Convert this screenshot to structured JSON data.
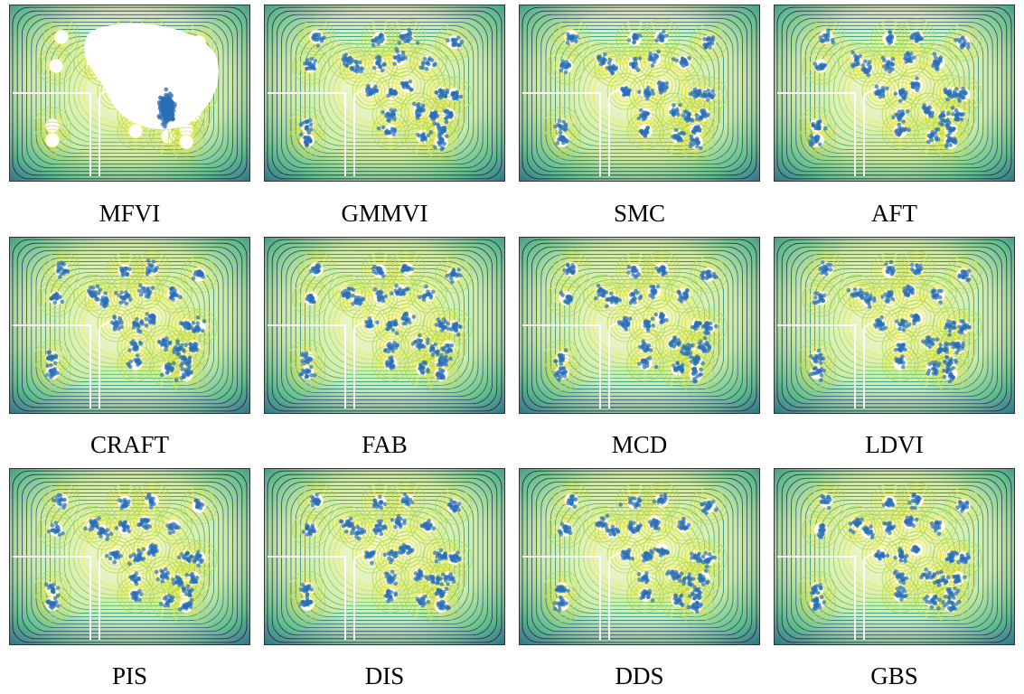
{
  "figure": {
    "panels": [
      {
        "label": "MFVI"
      },
      {
        "label": "GMMVI"
      },
      {
        "label": "SMC"
      },
      {
        "label": "AFT"
      },
      {
        "label": "CRAFT"
      },
      {
        "label": "FAB"
      },
      {
        "label": "MCD"
      },
      {
        "label": "LDVI"
      },
      {
        "label": "PIS"
      },
      {
        "label": "DIS"
      },
      {
        "label": "DDS"
      },
      {
        "label": "GBS"
      }
    ]
  },
  "colors": {
    "contour_low": "#440154",
    "contour_mid": "#21918c",
    "contour_high": "#fde725",
    "samples": "#2a6fb3",
    "background": "#ffffff"
  },
  "chart_data": [
    {
      "type": "scatter",
      "title": "MFVI",
      "samples_pattern": "collapsed-single-mode"
    },
    {
      "type": "scatter",
      "title": "GMMVI",
      "samples_pattern": "multi-mode"
    },
    {
      "type": "scatter",
      "title": "SMC",
      "samples_pattern": "multi-mode"
    },
    {
      "type": "scatter",
      "title": "AFT",
      "samples_pattern": "multi-mode"
    },
    {
      "type": "scatter",
      "title": "CRAFT",
      "samples_pattern": "multi-mode"
    },
    {
      "type": "scatter",
      "title": "FAB",
      "samples_pattern": "multi-mode"
    },
    {
      "type": "scatter",
      "title": "MCD",
      "samples_pattern": "multi-mode"
    },
    {
      "type": "scatter",
      "title": "LDVI",
      "samples_pattern": "multi-mode"
    },
    {
      "type": "scatter",
      "title": "PIS",
      "samples_pattern": "multi-mode"
    },
    {
      "type": "scatter",
      "title": "DIS",
      "samples_pattern": "multi-mode"
    },
    {
      "type": "scatter",
      "title": "DDS",
      "samples_pattern": "multi-mode"
    },
    {
      "type": "scatter",
      "title": "GBS",
      "samples_pattern": "multi-mode"
    }
  ]
}
